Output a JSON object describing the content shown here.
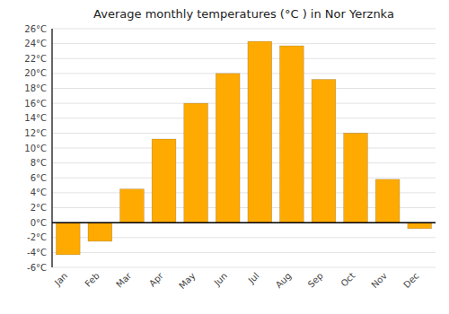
{
  "chart_data": {
    "type": "bar",
    "title": "Average monthly temperatures (°C ) in Nor Yerznka",
    "categories": [
      "Jan",
      "Feb",
      "Mar",
      "Apr",
      "May",
      "Jun",
      "Jul",
      "Aug",
      "Sep",
      "Oct",
      "Nov",
      "Dec"
    ],
    "values": [
      -4.3,
      -2.5,
      4.5,
      11.2,
      16.0,
      20.0,
      24.3,
      23.7,
      19.2,
      12.0,
      5.8,
      -0.8
    ],
    "color": "#FFAA00",
    "ylim": [
      -6,
      26
    ],
    "yticks": [
      {
        "value": -6,
        "label": "-6°C"
      },
      {
        "value": -4,
        "label": "-4°C"
      },
      {
        "value": -2,
        "label": "-2°C"
      },
      {
        "value": 0,
        "label": "0°C"
      },
      {
        "value": 2,
        "label": "2°C"
      },
      {
        "value": 4,
        "label": "4°C"
      },
      {
        "value": 6,
        "label": "6°C"
      },
      {
        "value": 8,
        "label": "8°C"
      },
      {
        "value": 10,
        "label": "10°C"
      },
      {
        "value": 12,
        "label": "12°C"
      },
      {
        "value": 14,
        "label": "14°C"
      },
      {
        "value": 16,
        "label": "16°C"
      },
      {
        "value": 18,
        "label": "18°C"
      },
      {
        "value": 20,
        "label": "20°C"
      },
      {
        "value": 22,
        "label": "22°C"
      },
      {
        "value": 24,
        "label": "24°C"
      },
      {
        "value": 26,
        "label": "26°C"
      }
    ],
    "grid": true
  }
}
